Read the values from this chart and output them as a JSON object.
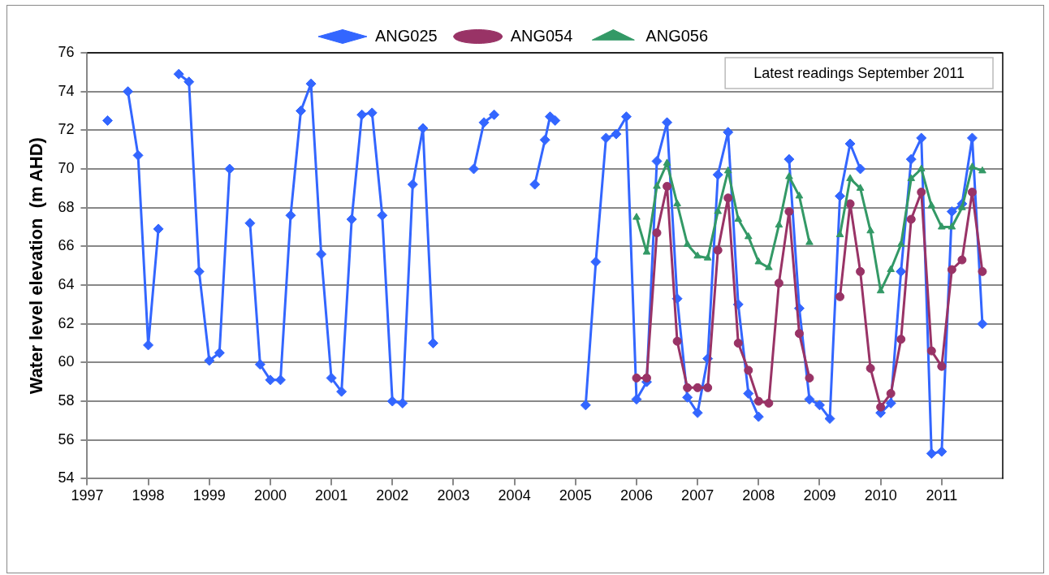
{
  "chart_data": {
    "type": "line",
    "ylabel": "Water level elevation  (m AHD)",
    "annotations": [
      "Latest readings September 2011"
    ],
    "xlim": [
      "1997",
      "2012"
    ],
    "xticks": [
      "1997",
      "1998",
      "1999",
      "2000",
      "2001",
      "2002",
      "2003",
      "2004",
      "2005",
      "2006",
      "2007",
      "2008",
      "2009",
      "2010",
      "2011"
    ],
    "ylim": [
      54,
      76
    ],
    "yticks": [
      54,
      56,
      58,
      60,
      62,
      64,
      66,
      68,
      70,
      72,
      74,
      76
    ],
    "grid": "y",
    "legend": "top",
    "line_style": "solid",
    "series": [
      {
        "name": "ANG025",
        "color": "#3366ff",
        "marker": "diamond",
        "x": [
          "1997-05",
          "1997-07",
          "1997-09",
          "1997-11",
          "1998-01",
          "1998-03",
          "1998-05",
          "1998-07",
          "1998-09",
          "1998-11",
          "1999-01",
          "1999-03",
          "1999-05",
          "1999-07",
          "1999-09",
          "1999-11",
          "2000-01",
          "2000-03",
          "2000-05",
          "2000-07",
          "2000-09",
          "2000-11",
          "2001-01",
          "2001-03",
          "2001-05",
          "2001-07",
          "2001-09",
          "2001-11",
          "2002-01",
          "2002-03",
          "2002-05",
          "2002-07",
          "2002-09",
          "2003-01",
          "2003-05",
          "2003-07",
          "2003-09",
          "2004-01",
          "2004-05",
          "2004-07",
          "2004-08",
          "2004-09",
          "2004-12",
          "2005-03",
          "2005-05",
          "2005-07",
          "2005-09",
          "2005-11",
          "2006-01",
          "2006-03",
          "2006-05",
          "2006-07",
          "2006-09",
          "2006-11",
          "2007-01",
          "2007-03",
          "2007-05",
          "2007-07",
          "2007-09",
          "2007-11",
          "2008-01",
          "2008-04",
          "2008-07",
          "2008-09",
          "2008-11",
          "2009-01",
          "2009-03",
          "2009-05",
          "2009-07",
          "2009-09",
          "2009-11",
          "2010-01",
          "2010-03",
          "2010-05",
          "2010-07",
          "2010-09",
          "2010-11",
          "2011-01",
          "2011-03",
          "2011-05",
          "2011-07",
          "2011-09"
        ],
        "values": [
          72.5,
          null,
          74.0,
          70.7,
          60.9,
          66.9,
          null,
          74.9,
          74.5,
          64.7,
          60.1,
          60.5,
          70.0,
          null,
          67.2,
          59.9,
          59.1,
          59.1,
          67.6,
          73.0,
          74.4,
          65.6,
          59.2,
          58.5,
          67.4,
          72.8,
          72.9,
          67.6,
          58.0,
          57.9,
          69.2,
          72.1,
          61.0,
          null,
          70.0,
          72.4,
          72.8,
          null,
          69.2,
          71.5,
          72.7,
          72.5,
          null,
          57.8,
          65.2,
          71.6,
          71.8,
          72.7,
          58.1,
          59.0,
          70.4,
          72.4,
          63.3,
          58.2,
          57.4,
          60.2,
          69.7,
          71.9,
          63.0,
          58.4,
          57.2,
          null,
          70.5,
          62.8,
          58.1,
          57.8,
          57.1,
          68.6,
          71.3,
          70.0,
          null,
          57.4,
          57.9,
          64.7,
          70.5,
          71.6,
          55.3,
          55.4,
          67.8,
          68.2,
          71.6,
          62.0
        ]
      },
      {
        "name": "ANG054",
        "color": "#993366",
        "marker": "circle",
        "x": [
          "2006-01",
          "2006-03",
          "2006-05",
          "2006-07",
          "2006-09",
          "2006-11",
          "2007-01",
          "2007-03",
          "2007-05",
          "2007-07",
          "2007-09",
          "2007-11",
          "2008-01",
          "2008-03",
          "2008-05",
          "2008-07",
          "2008-09",
          "2008-11",
          "2009-02",
          "2009-05",
          "2009-07",
          "2009-09",
          "2009-11",
          "2010-01",
          "2010-03",
          "2010-05",
          "2010-07",
          "2010-09",
          "2010-11",
          "2011-01",
          "2011-03",
          "2011-05",
          "2011-07",
          "2011-09"
        ],
        "values": [
          59.2,
          59.2,
          66.7,
          69.1,
          61.1,
          58.7,
          58.7,
          58.7,
          65.8,
          68.5,
          61.0,
          59.6,
          58.0,
          57.9,
          64.1,
          67.8,
          61.5,
          59.2,
          null,
          63.4,
          68.2,
          64.7,
          59.7,
          57.7,
          58.4,
          61.2,
          67.4,
          68.8,
          60.6,
          59.8,
          64.8,
          65.3,
          68.8,
          64.7
        ]
      },
      {
        "name": "ANG056",
        "color": "#339966",
        "marker": "triangle",
        "x": [
          "2006-01",
          "2006-03",
          "2006-05",
          "2006-07",
          "2006-09",
          "2006-11",
          "2007-01",
          "2007-03",
          "2007-05",
          "2007-07",
          "2007-09",
          "2007-11",
          "2008-01",
          "2008-03",
          "2008-05",
          "2008-07",
          "2008-09",
          "2008-11",
          "2009-02",
          "2009-05",
          "2009-07",
          "2009-09",
          "2009-11",
          "2010-01",
          "2010-03",
          "2010-05",
          "2010-07",
          "2010-09",
          "2010-11",
          "2011-01",
          "2011-03",
          "2011-05",
          "2011-07",
          "2011-09"
        ],
        "values": [
          67.5,
          65.7,
          69.1,
          70.3,
          68.2,
          66.1,
          65.5,
          65.4,
          67.8,
          69.9,
          67.4,
          66.5,
          65.2,
          64.9,
          67.1,
          69.6,
          68.6,
          66.2,
          null,
          66.6,
          69.5,
          69.0,
          66.8,
          63.7,
          64.8,
          66.1,
          69.5,
          70.0,
          68.1,
          67.0,
          67.0,
          68.0,
          70.1,
          69.9
        ]
      }
    ]
  }
}
